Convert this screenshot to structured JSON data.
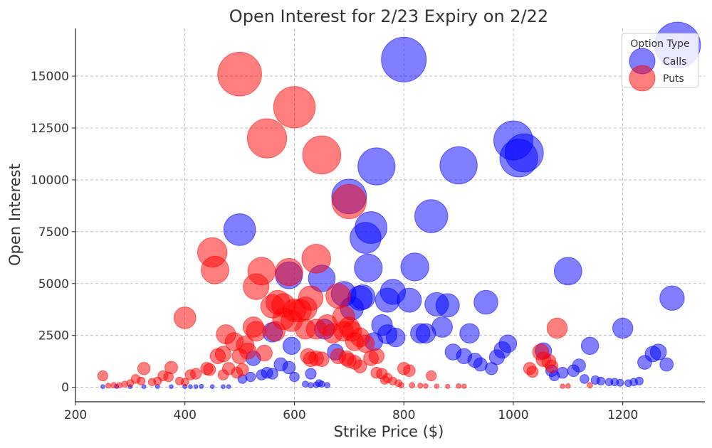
{
  "chart_data": {
    "type": "scatter",
    "title": "Open Interest for 2/23 Expiry on 2/22",
    "xlabel": "Strike Price ($)",
    "ylabel": "Open Interest",
    "xlim": [
      200,
      1350
    ],
    "ylim": [
      -700,
      17300
    ],
    "x_ticks": [
      200,
      400,
      600,
      800,
      1000,
      1200
    ],
    "x_tick_labels": [
      "200",
      "400",
      "600",
      "800",
      "1000",
      "1200"
    ],
    "y_ticks": [
      0,
      2500,
      5000,
      7500,
      10000,
      12500,
      15000
    ],
    "y_tick_labels": [
      "0",
      "2500",
      "5000",
      "7500",
      "10000",
      "12500",
      "15000"
    ],
    "grid": true,
    "marker_size_encodes": "open interest",
    "legend": {
      "title": "Option Type",
      "placement": "top-right",
      "entries": [
        {
          "label": "Calls",
          "color": "#0000ff"
        },
        {
          "label": "Puts",
          "color": "#ff0000"
        }
      ]
    },
    "series": [
      {
        "name": "Calls",
        "color": "#0000ff",
        "points": [
          {
            "x": 800,
            "y": 15800
          },
          {
            "x": 1300,
            "y": 16500
          },
          {
            "x": 1000,
            "y": 11900
          },
          {
            "x": 1020,
            "y": 11300
          },
          {
            "x": 1010,
            "y": 11050
          },
          {
            "x": 900,
            "y": 10700
          },
          {
            "x": 750,
            "y": 10650
          },
          {
            "x": 700,
            "y": 9200
          },
          {
            "x": 850,
            "y": 8250
          },
          {
            "x": 740,
            "y": 7700
          },
          {
            "x": 730,
            "y": 7200
          },
          {
            "x": 500,
            "y": 7600
          },
          {
            "x": 820,
            "y": 5800
          },
          {
            "x": 735,
            "y": 5750
          },
          {
            "x": 1100,
            "y": 5600
          },
          {
            "x": 590,
            "y": 5400
          },
          {
            "x": 650,
            "y": 5250
          },
          {
            "x": 780,
            "y": 4600
          },
          {
            "x": 690,
            "y": 4500
          },
          {
            "x": 725,
            "y": 4350
          },
          {
            "x": 720,
            "y": 4300
          },
          {
            "x": 810,
            "y": 4200
          },
          {
            "x": 770,
            "y": 4200
          },
          {
            "x": 1290,
            "y": 4300
          },
          {
            "x": 950,
            "y": 4100
          },
          {
            "x": 860,
            "y": 4000
          },
          {
            "x": 880,
            "y": 3950
          },
          {
            "x": 705,
            "y": 3800
          },
          {
            "x": 760,
            "y": 3000
          },
          {
            "x": 870,
            "y": 2900
          },
          {
            "x": 1200,
            "y": 2850
          },
          {
            "x": 655,
            "y": 2800
          },
          {
            "x": 770,
            "y": 2550
          },
          {
            "x": 785,
            "y": 2400
          },
          {
            "x": 830,
            "y": 2600
          },
          {
            "x": 840,
            "y": 2600
          },
          {
            "x": 920,
            "y": 2600
          },
          {
            "x": 745,
            "y": 2200
          },
          {
            "x": 990,
            "y": 2100
          },
          {
            "x": 560,
            "y": 2650
          },
          {
            "x": 595,
            "y": 2000
          },
          {
            "x": 1140,
            "y": 2000
          },
          {
            "x": 980,
            "y": 1800
          },
          {
            "x": 1055,
            "y": 1750
          },
          {
            "x": 890,
            "y": 1700
          },
          {
            "x": 1265,
            "y": 1700
          },
          {
            "x": 1255,
            "y": 1600
          },
          {
            "x": 910,
            "y": 1500
          },
          {
            "x": 970,
            "y": 1450
          },
          {
            "x": 675,
            "y": 1700
          },
          {
            "x": 525,
            "y": 1400
          },
          {
            "x": 930,
            "y": 1300
          },
          {
            "x": 1240,
            "y": 1200
          },
          {
            "x": 1280,
            "y": 1100
          },
          {
            "x": 940,
            "y": 1100
          },
          {
            "x": 1120,
            "y": 1050
          },
          {
            "x": 575,
            "y": 1100
          },
          {
            "x": 590,
            "y": 950
          },
          {
            "x": 960,
            "y": 900
          },
          {
            "x": 1110,
            "y": 800
          },
          {
            "x": 1070,
            "y": 800
          },
          {
            "x": 1090,
            "y": 700
          },
          {
            "x": 1075,
            "y": 550
          },
          {
            "x": 630,
            "y": 650
          },
          {
            "x": 550,
            "y": 700
          },
          {
            "x": 540,
            "y": 600
          },
          {
            "x": 560,
            "y": 650
          },
          {
            "x": 520,
            "y": 500
          },
          {
            "x": 505,
            "y": 400
          },
          {
            "x": 600,
            "y": 500
          },
          {
            "x": 1130,
            "y": 400
          },
          {
            "x": 1150,
            "y": 350
          },
          {
            "x": 1160,
            "y": 300
          },
          {
            "x": 1175,
            "y": 250
          },
          {
            "x": 1185,
            "y": 250
          },
          {
            "x": 1195,
            "y": 220
          },
          {
            "x": 1220,
            "y": 250
          },
          {
            "x": 1230,
            "y": 300
          },
          {
            "x": 1210,
            "y": 200
          },
          {
            "x": 620,
            "y": 150
          },
          {
            "x": 630,
            "y": 100
          },
          {
            "x": 640,
            "y": 120
          },
          {
            "x": 645,
            "y": 200
          },
          {
            "x": 650,
            "y": 150
          },
          {
            "x": 660,
            "y": 100
          },
          {
            "x": 250,
            "y": 30
          },
          {
            "x": 275,
            "y": 40
          },
          {
            "x": 300,
            "y": 30
          },
          {
            "x": 325,
            "y": 30
          },
          {
            "x": 350,
            "y": 40
          },
          {
            "x": 375,
            "y": 30
          },
          {
            "x": 400,
            "y": 40
          },
          {
            "x": 410,
            "y": 30
          },
          {
            "x": 420,
            "y": 30
          },
          {
            "x": 430,
            "y": 40
          },
          {
            "x": 450,
            "y": 30
          },
          {
            "x": 470,
            "y": 30
          },
          {
            "x": 480,
            "y": 30
          }
        ]
      },
      {
        "name": "Puts",
        "color": "#ff0000",
        "points": [
          {
            "x": 500,
            "y": 15100
          },
          {
            "x": 600,
            "y": 13500
          },
          {
            "x": 550,
            "y": 12000
          },
          {
            "x": 650,
            "y": 11200
          },
          {
            "x": 700,
            "y": 8950
          },
          {
            "x": 450,
            "y": 6500
          },
          {
            "x": 455,
            "y": 5650
          },
          {
            "x": 640,
            "y": 6200
          },
          {
            "x": 540,
            "y": 5600
          },
          {
            "x": 590,
            "y": 5550
          },
          {
            "x": 530,
            "y": 4850
          },
          {
            "x": 630,
            "y": 4300
          },
          {
            "x": 680,
            "y": 4400
          },
          {
            "x": 570,
            "y": 4100
          },
          {
            "x": 580,
            "y": 3950
          },
          {
            "x": 560,
            "y": 3900
          },
          {
            "x": 600,
            "y": 3700
          },
          {
            "x": 620,
            "y": 3800
          },
          {
            "x": 610,
            "y": 3700
          },
          {
            "x": 690,
            "y": 3400
          },
          {
            "x": 580,
            "y": 3300
          },
          {
            "x": 595,
            "y": 3200
          },
          {
            "x": 400,
            "y": 3350
          },
          {
            "x": 660,
            "y": 3000
          },
          {
            "x": 700,
            "y": 2900
          },
          {
            "x": 690,
            "y": 2700
          },
          {
            "x": 705,
            "y": 2700
          },
          {
            "x": 670,
            "y": 2600
          },
          {
            "x": 720,
            "y": 2400
          },
          {
            "x": 710,
            "y": 2200
          },
          {
            "x": 730,
            "y": 2100
          },
          {
            "x": 525,
            "y": 2900
          },
          {
            "x": 530,
            "y": 2700
          },
          {
            "x": 565,
            "y": 2700
          },
          {
            "x": 620,
            "y": 2800
          },
          {
            "x": 640,
            "y": 2800
          },
          {
            "x": 475,
            "y": 2550
          },
          {
            "x": 490,
            "y": 2200
          },
          {
            "x": 510,
            "y": 2050
          },
          {
            "x": 515,
            "y": 1750
          },
          {
            "x": 500,
            "y": 1500
          },
          {
            "x": 545,
            "y": 1650
          },
          {
            "x": 470,
            "y": 1600
          },
          {
            "x": 460,
            "y": 1500
          },
          {
            "x": 625,
            "y": 1500
          },
          {
            "x": 630,
            "y": 1350
          },
          {
            "x": 640,
            "y": 1400
          },
          {
            "x": 650,
            "y": 1350
          },
          {
            "x": 680,
            "y": 1500
          },
          {
            "x": 695,
            "y": 1400
          },
          {
            "x": 700,
            "y": 1300
          },
          {
            "x": 710,
            "y": 1200
          },
          {
            "x": 720,
            "y": 1000
          },
          {
            "x": 740,
            "y": 1400
          },
          {
            "x": 750,
            "y": 1500
          },
          {
            "x": 1080,
            "y": 2850
          },
          {
            "x": 1050,
            "y": 1700
          },
          {
            "x": 1055,
            "y": 1350
          },
          {
            "x": 1065,
            "y": 1250
          },
          {
            "x": 1070,
            "y": 1000
          },
          {
            "x": 1030,
            "y": 900
          },
          {
            "x": 1035,
            "y": 750
          },
          {
            "x": 325,
            "y": 900
          },
          {
            "x": 375,
            "y": 950
          },
          {
            "x": 440,
            "y": 900
          },
          {
            "x": 445,
            "y": 850
          },
          {
            "x": 480,
            "y": 900
          },
          {
            "x": 505,
            "y": 850
          },
          {
            "x": 420,
            "y": 650
          },
          {
            "x": 410,
            "y": 600
          },
          {
            "x": 360,
            "y": 550
          },
          {
            "x": 370,
            "y": 500
          },
          {
            "x": 250,
            "y": 550
          },
          {
            "x": 310,
            "y": 400
          },
          {
            "x": 320,
            "y": 300
          },
          {
            "x": 340,
            "y": 250
          },
          {
            "x": 350,
            "y": 300
          },
          {
            "x": 390,
            "y": 300
          },
          {
            "x": 400,
            "y": 250
          },
          {
            "x": 300,
            "y": 200
          },
          {
            "x": 290,
            "y": 150
          },
          {
            "x": 280,
            "y": 100
          },
          {
            "x": 270,
            "y": 100
          },
          {
            "x": 260,
            "y": 80
          },
          {
            "x": 470,
            "y": 600
          },
          {
            "x": 495,
            "y": 700
          },
          {
            "x": 750,
            "y": 700
          },
          {
            "x": 760,
            "y": 650
          },
          {
            "x": 765,
            "y": 350
          },
          {
            "x": 770,
            "y": 450
          },
          {
            "x": 780,
            "y": 300
          },
          {
            "x": 790,
            "y": 200
          },
          {
            "x": 795,
            "y": 100
          },
          {
            "x": 800,
            "y": 900
          },
          {
            "x": 810,
            "y": 800
          },
          {
            "x": 850,
            "y": 550
          },
          {
            "x": 815,
            "y": 100
          },
          {
            "x": 830,
            "y": 80
          },
          {
            "x": 840,
            "y": 60
          },
          {
            "x": 860,
            "y": 50
          },
          {
            "x": 880,
            "y": 40
          },
          {
            "x": 900,
            "y": 60
          },
          {
            "x": 910,
            "y": 50
          },
          {
            "x": 1090,
            "y": 50
          },
          {
            "x": 1100,
            "y": 60
          },
          {
            "x": 1140,
            "y": 100
          }
        ]
      }
    ]
  }
}
